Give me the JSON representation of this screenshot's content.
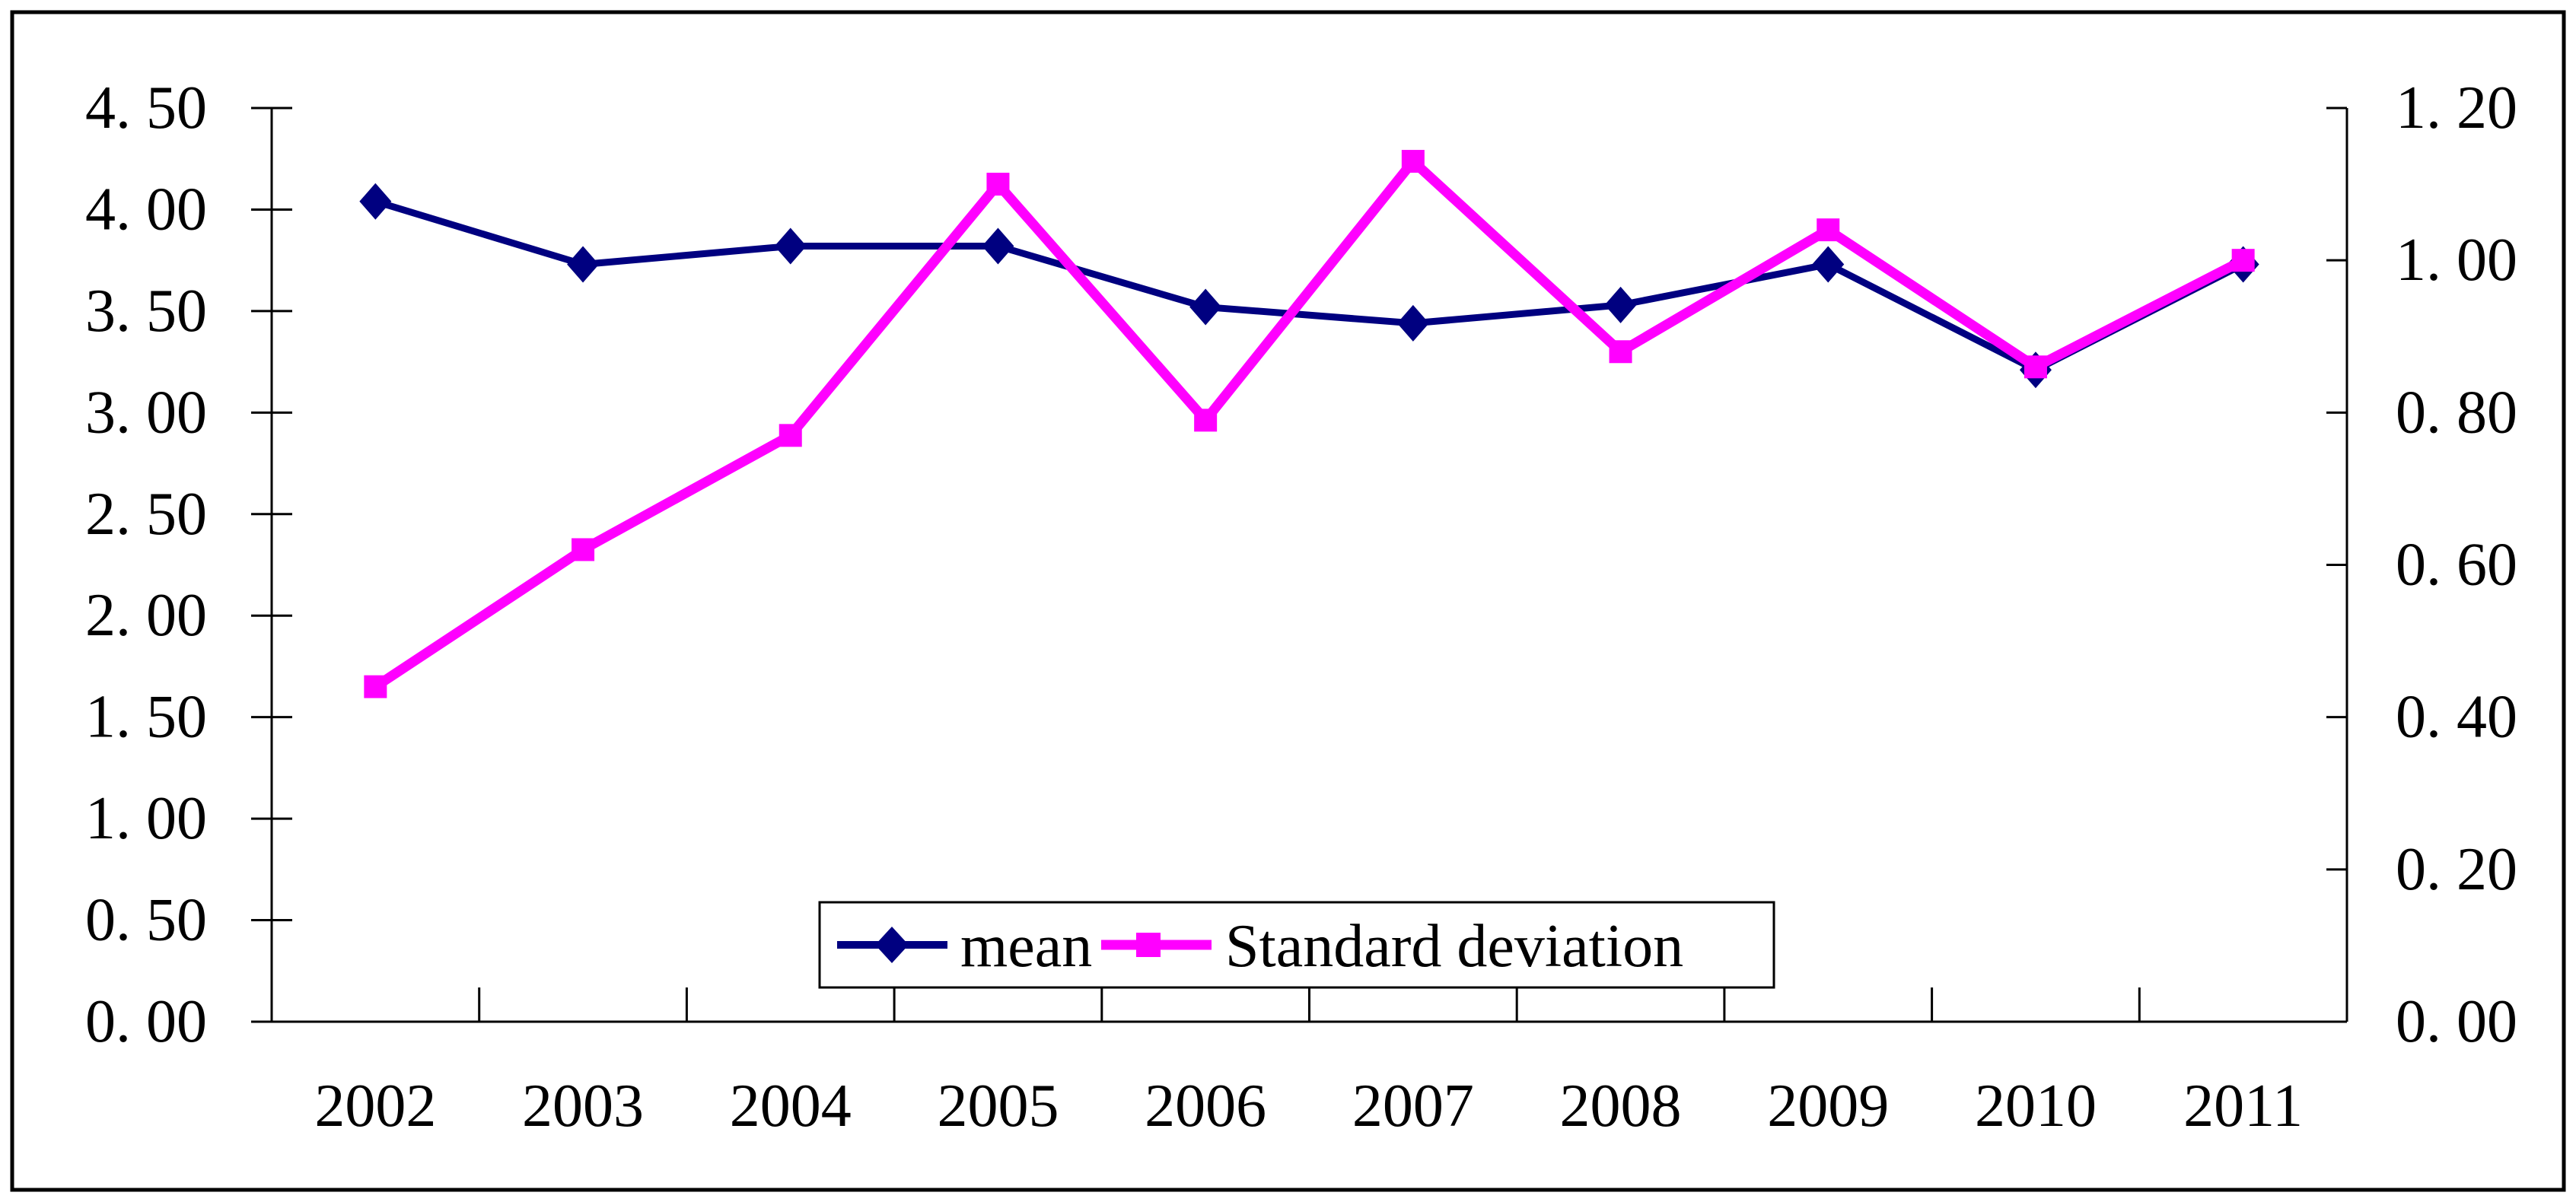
{
  "figure": {
    "background_color": "#ffffff",
    "border_color": "#000000",
    "plot_background": "#ffffff",
    "axis_line_color": "#000000",
    "grid": false,
    "title": ""
  },
  "chart_data": {
    "type": "line",
    "categories": [
      "2002",
      "2003",
      "2004",
      "2005",
      "2006",
      "2007",
      "2008",
      "2009",
      "2010",
      "2011"
    ],
    "series": [
      {
        "name": "mean",
        "axis": "left",
        "color": "#000080",
        "marker": "diamond",
        "values": [
          4.04,
          3.73,
          3.82,
          3.82,
          3.52,
          3.44,
          3.53,
          3.73,
          3.21,
          3.73
        ]
      },
      {
        "name": "Standard deviation",
        "axis": "right",
        "color": "#ff00ff",
        "marker": "square",
        "values": [
          0.44,
          0.62,
          0.77,
          1.1,
          0.79,
          1.13,
          0.88,
          1.04,
          0.86,
          1.0
        ]
      }
    ],
    "left_axis": {
      "min": 0,
      "max": 4.5,
      "step": 0.5,
      "tick_labels": [
        "0. 00",
        "0. 50",
        "1. 00",
        "1. 50",
        "2. 00",
        "2. 50",
        "3. 00",
        "3. 50",
        "4. 00",
        "4. 50"
      ]
    },
    "right_axis": {
      "min": 0,
      "max": 1.2,
      "step": 0.2,
      "tick_labels": [
        "0. 00",
        "0. 20",
        "0. 40",
        "0. 60",
        "0. 80",
        "1. 00",
        "1. 20"
      ]
    },
    "legend": {
      "position": "bottom-center-inside",
      "border_color": "#000000",
      "items": [
        {
          "label": "mean",
          "color": "#000080",
          "marker": "diamond"
        },
        {
          "label": "Standard deviation",
          "color": "#ff00ff",
          "marker": "square"
        }
      ]
    }
  }
}
